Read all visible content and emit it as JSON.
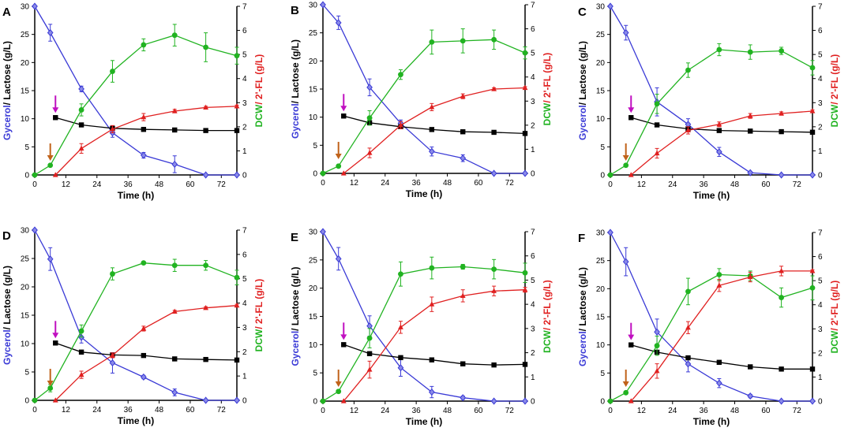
{
  "chart_data": [
    {
      "panel": "A",
      "type": "line",
      "title": "",
      "xlabel": "Time (h)",
      "ylabel_left_part1": "Gycerol",
      "ylabel_left_part2": "/ Lactose (g/L)",
      "ylabel_right_part1": "DCW",
      "ylabel_right_part2": "/ 2'-FL (g/L)",
      "xlim": [
        0,
        78
      ],
      "xticks": [
        "0",
        "12",
        "24",
        "36",
        "48",
        "60",
        "72"
      ],
      "ylim_left": [
        0,
        30
      ],
      "yticks_left": [
        "0",
        "5",
        "10",
        "15",
        "20",
        "25",
        "30"
      ],
      "ylim_right": [
        0,
        7
      ],
      "yticks_right": [
        "0",
        "1",
        "2",
        "3",
        "4",
        "5",
        "6",
        "7"
      ],
      "arrow_feed_time": 6,
      "arrow_induction_time": 8,
      "series": [
        {
          "name": "Glycerol",
          "axis": "left",
          "color": "#3a3ad6",
          "marker": "diamond",
          "x": [
            0,
            6,
            18,
            30,
            42,
            54,
            66,
            78
          ],
          "y": [
            30,
            25.3,
            15.3,
            7.5,
            3.5,
            1.9,
            0,
            0
          ],
          "err": [
            0,
            1.5,
            0.5,
            0.8,
            0.5,
            1.5,
            0,
            0
          ]
        },
        {
          "name": "Lactose",
          "axis": "left",
          "color": "#000000",
          "marker": "square",
          "x": [
            8,
            18,
            30,
            42,
            54,
            66,
            78
          ],
          "y": [
            10.2,
            8.9,
            8.3,
            8.1,
            8.0,
            7.9,
            7.9
          ],
          "err": [
            0,
            0,
            0,
            0,
            0,
            0,
            0
          ]
        },
        {
          "name": "DCW",
          "axis": "right",
          "color": "#21b321",
          "marker": "circle",
          "x": [
            0,
            6,
            18,
            30,
            42,
            54,
            66,
            78
          ],
          "y": [
            0,
            0.4,
            2.7,
            4.3,
            5.4,
            5.8,
            5.3,
            4.95
          ],
          "err": [
            0,
            0.05,
            0.25,
            0.45,
            0.25,
            0.45,
            0.6,
            0.35
          ]
        },
        {
          "name": "2'-FL",
          "axis": "right",
          "color": "#e02020",
          "marker": "triangle",
          "x": [
            8,
            18,
            30,
            42,
            54,
            66,
            78
          ],
          "y": [
            0,
            1.1,
            1.9,
            2.4,
            2.65,
            2.8,
            2.85
          ],
          "err": [
            0,
            0.2,
            0.15,
            0.15,
            0.07,
            0.05,
            0.05
          ]
        }
      ]
    },
    {
      "panel": "B",
      "type": "line",
      "title": "",
      "xlabel": "Time (h)",
      "ylabel_left_part1": "Gycerol",
      "ylabel_left_part2": "/ Lactose (g/L)",
      "ylabel_right_part1": "DCW",
      "ylabel_right_part2": "/ 2'-FL (g/L)",
      "xlim": [
        0,
        78
      ],
      "xticks": [
        "0",
        "12",
        "24",
        "36",
        "48",
        "60",
        "72"
      ],
      "ylim_left": [
        0,
        30
      ],
      "yticks_left": [
        "0",
        "5",
        "10",
        "15",
        "20",
        "25",
        "30"
      ],
      "ylim_right": [
        0,
        7
      ],
      "yticks_right": [
        "0",
        "1",
        "2",
        "3",
        "4",
        "5",
        "6",
        "7"
      ],
      "arrow_feed_time": 6,
      "arrow_induction_time": 8,
      "series": [
        {
          "name": "Glycerol",
          "axis": "left",
          "color": "#3a3ad6",
          "marker": "diamond",
          "x": [
            0,
            6,
            18,
            30,
            42,
            54,
            66,
            78
          ],
          "y": [
            30,
            26.8,
            15.3,
            8.9,
            3.9,
            2.7,
            0,
            0
          ],
          "err": [
            0,
            1.2,
            1.5,
            0.6,
            0.8,
            0.6,
            0,
            0
          ]
        },
        {
          "name": "Lactose",
          "axis": "left",
          "color": "#000000",
          "marker": "square",
          "x": [
            8,
            18,
            30,
            42,
            54,
            66,
            78
          ],
          "y": [
            10.2,
            9.0,
            8.3,
            7.8,
            7.4,
            7.3,
            7.1
          ],
          "err": [
            0,
            0,
            0,
            0,
            0,
            0,
            0
          ]
        },
        {
          "name": "DCW",
          "axis": "right",
          "color": "#21b321",
          "marker": "circle",
          "x": [
            0,
            6,
            18,
            30,
            42,
            54,
            66,
            78
          ],
          "y": [
            0,
            0.3,
            2.3,
            4.1,
            5.45,
            5.5,
            5.55,
            5.0
          ],
          "err": [
            0,
            0.05,
            0.3,
            0.2,
            0.5,
            0.5,
            0.4,
            0.25
          ]
        },
        {
          "name": "2'-FL",
          "axis": "right",
          "color": "#e02020",
          "marker": "triangle",
          "x": [
            8,
            18,
            30,
            42,
            54,
            66,
            78
          ],
          "y": [
            0,
            0.85,
            2.0,
            2.75,
            3.2,
            3.5,
            3.55
          ],
          "err": [
            0,
            0.2,
            0.15,
            0.15,
            0.1,
            0.05,
            0.05
          ]
        }
      ]
    },
    {
      "panel": "C",
      "type": "line",
      "title": "",
      "xlabel": "Time (h)",
      "ylabel_left_part1": "Gycerol",
      "ylabel_left_part2": "/ Lactose (g/L)",
      "ylabel_right_part1": "DCW",
      "ylabel_right_part2": "/ 2'-FL (g/L)",
      "xlim": [
        0,
        78
      ],
      "xticks": [
        "0",
        "12",
        "24",
        "36",
        "48",
        "60",
        "72"
      ],
      "ylim_left": [
        0,
        30
      ],
      "yticks_left": [
        "0",
        "5",
        "10",
        "15",
        "20",
        "25",
        "30"
      ],
      "ylim_right": [
        0,
        7
      ],
      "yticks_right": [
        "0",
        "1",
        "2",
        "3",
        "4",
        "5",
        "6",
        "7"
      ],
      "arrow_feed_time": 6,
      "arrow_induction_time": 8,
      "series": [
        {
          "name": "Glycerol",
          "axis": "left",
          "color": "#3a3ad6",
          "marker": "diamond",
          "x": [
            0,
            6,
            18,
            30,
            42,
            54,
            66,
            78
          ],
          "y": [
            30,
            25.3,
            13.0,
            9.0,
            4.1,
            0.4,
            0,
            0
          ],
          "err": [
            0,
            1.3,
            2.5,
            1.0,
            0.8,
            0.2,
            0,
            0
          ]
        },
        {
          "name": "Lactose",
          "axis": "left",
          "color": "#000000",
          "marker": "square",
          "x": [
            8,
            18,
            30,
            42,
            54,
            66,
            78
          ],
          "y": [
            10.2,
            8.9,
            8.2,
            7.9,
            7.8,
            7.7,
            7.6
          ],
          "err": [
            0,
            0,
            0,
            0,
            0,
            0,
            0
          ]
        },
        {
          "name": "DCW",
          "axis": "right",
          "color": "#21b321",
          "marker": "circle",
          "x": [
            0,
            6,
            18,
            30,
            42,
            54,
            66,
            78
          ],
          "y": [
            0,
            0.4,
            2.95,
            4.35,
            5.2,
            5.1,
            5.15,
            4.45
          ],
          "err": [
            0,
            0.05,
            0.4,
            0.3,
            0.25,
            0.3,
            0.15,
            0.3
          ]
        },
        {
          "name": "2'-FL",
          "axis": "right",
          "color": "#e02020",
          "marker": "triangle",
          "x": [
            8,
            18,
            30,
            42,
            54,
            66,
            78
          ],
          "y": [
            0,
            0.9,
            1.85,
            2.1,
            2.45,
            2.55,
            2.65
          ],
          "err": [
            0,
            0.2,
            0.15,
            0.1,
            0.1,
            0.07,
            0.05
          ]
        }
      ]
    },
    {
      "panel": "D",
      "type": "line",
      "title": "",
      "xlabel": "Time (h)",
      "ylabel_left_part1": "Gycerol",
      "ylabel_left_part2": "/ Lactose (g/L)",
      "ylabel_right_part1": "DCW",
      "ylabel_right_part2": "/ 2'-FL (g/L)",
      "xlim": [
        0,
        78
      ],
      "xticks": [
        "0",
        "12",
        "24",
        "36",
        "48",
        "60",
        "72"
      ],
      "ylim_left": [
        0,
        30
      ],
      "yticks_left": [
        "0",
        "5",
        "10",
        "15",
        "20",
        "25",
        "30"
      ],
      "ylim_right": [
        0,
        7
      ],
      "yticks_right": [
        "0",
        "1",
        "2",
        "3",
        "4",
        "5",
        "6",
        "7"
      ],
      "arrow_feed_time": 6,
      "arrow_induction_time": 8,
      "series": [
        {
          "name": "Glycerol",
          "axis": "left",
          "color": "#3a3ad6",
          "marker": "diamond",
          "x": [
            0,
            6,
            18,
            30,
            42,
            54,
            66,
            78
          ],
          "y": [
            30,
            24.9,
            11.1,
            6.6,
            4.1,
            1.4,
            0,
            0
          ],
          "err": [
            0,
            2.0,
            1.0,
            1.8,
            0.3,
            0.6,
            0,
            0
          ]
        },
        {
          "name": "Lactose",
          "axis": "left",
          "color": "#000000",
          "marker": "square",
          "x": [
            8,
            18,
            30,
            42,
            54,
            66,
            78
          ],
          "y": [
            10.1,
            8.5,
            8.0,
            7.9,
            7.3,
            7.2,
            7.1
          ],
          "err": [
            0,
            0,
            0,
            0,
            0,
            0,
            0
          ]
        },
        {
          "name": "DCW",
          "axis": "right",
          "color": "#21b321",
          "marker": "circle",
          "x": [
            0,
            6,
            18,
            30,
            42,
            54,
            66,
            78
          ],
          "y": [
            0,
            0.5,
            2.85,
            5.2,
            5.65,
            5.55,
            5.55,
            5.05
          ],
          "err": [
            0,
            0.15,
            0.25,
            0.25,
            0.05,
            0.25,
            0.2,
            0.3
          ]
        },
        {
          "name": "2'-FL",
          "axis": "right",
          "color": "#e02020",
          "marker": "triangle",
          "x": [
            8,
            18,
            30,
            42,
            54,
            66,
            78
          ],
          "y": [
            0,
            1.05,
            1.85,
            2.95,
            3.65,
            3.8,
            3.9
          ],
          "err": [
            0,
            0.15,
            0.1,
            0.1,
            0.05,
            0.05,
            0.05
          ]
        }
      ]
    },
    {
      "panel": "E",
      "type": "line",
      "title": "",
      "xlabel": "Time (h)",
      "ylabel_left_part1": "Gycerol",
      "ylabel_left_part2": "/ Lactose (g/L)",
      "ylabel_right_part1": "DCW",
      "ylabel_right_part2": "/ 2'-FL (g/L)",
      "xlim": [
        0,
        78
      ],
      "xticks": [
        "0",
        "12",
        "24",
        "36",
        "48",
        "60",
        "72"
      ],
      "ylim_left": [
        0,
        30
      ],
      "yticks_left": [
        "0",
        "5",
        "10",
        "15",
        "20",
        "25",
        "30"
      ],
      "ylim_right": [
        0,
        7
      ],
      "yticks_right": [
        "0",
        "1",
        "2",
        "3",
        "4",
        "5",
        "6",
        "7"
      ],
      "arrow_feed_time": 6,
      "arrow_induction_time": 8,
      "series": [
        {
          "name": "Glycerol",
          "axis": "left",
          "color": "#3a3ad6",
          "marker": "diamond",
          "x": [
            0,
            6,
            18,
            30,
            42,
            54,
            66,
            78
          ],
          "y": [
            30,
            25.2,
            13.3,
            5.9,
            1.6,
            0.6,
            0,
            0
          ],
          "err": [
            0,
            2.0,
            1.8,
            1.5,
            1.0,
            0.3,
            0,
            0
          ]
        },
        {
          "name": "Lactose",
          "axis": "left",
          "color": "#000000",
          "marker": "square",
          "x": [
            8,
            18,
            30,
            42,
            54,
            66,
            78
          ],
          "y": [
            10.0,
            8.4,
            7.7,
            7.3,
            6.6,
            6.4,
            6.5
          ],
          "err": [
            0,
            0,
            0,
            0,
            0,
            0,
            0
          ]
        },
        {
          "name": "DCW",
          "axis": "right",
          "color": "#21b321",
          "marker": "circle",
          "x": [
            0,
            6,
            18,
            30,
            42,
            54,
            66,
            78
          ],
          "y": [
            0,
            0.4,
            2.6,
            5.25,
            5.5,
            5.55,
            5.45,
            5.3
          ],
          "err": [
            0,
            0.05,
            0.4,
            0.5,
            0.45,
            0.1,
            0.4,
            0.4
          ]
        },
        {
          "name": "2'-FL",
          "axis": "right",
          "color": "#e02020",
          "marker": "triangle",
          "x": [
            8,
            18,
            30,
            42,
            54,
            66,
            78
          ],
          "y": [
            0,
            1.3,
            3.05,
            4.0,
            4.35,
            4.55,
            4.6
          ],
          "err": [
            0,
            0.35,
            0.25,
            0.3,
            0.25,
            0.2,
            0.1
          ]
        }
      ]
    },
    {
      "panel": "F",
      "type": "line",
      "title": "",
      "xlabel": "Time (h)",
      "ylabel_left_part1": "Gycerol",
      "ylabel_left_part2": "/ Lactose (g/L)",
      "ylabel_right_part1": "DCW",
      "ylabel_right_part2": "/ 2'-FL (g/L)",
      "xlim": [
        0,
        78
      ],
      "xticks": [
        "0",
        "12",
        "24",
        "36",
        "48",
        "60",
        "72"
      ],
      "ylim_left": [
        0,
        30
      ],
      "yticks_left": [
        "0",
        "5",
        "10",
        "15",
        "20",
        "25",
        "30"
      ],
      "ylim_right": [
        0,
        7
      ],
      "yticks_right": [
        "0",
        "1",
        "2",
        "3",
        "4",
        "5",
        "6",
        "7"
      ],
      "arrow_feed_time": 6,
      "arrow_induction_time": 8,
      "series": [
        {
          "name": "Glycerol",
          "axis": "left",
          "color": "#3a3ad6",
          "marker": "diamond",
          "x": [
            0,
            6,
            18,
            30,
            42,
            54,
            66,
            78
          ],
          "y": [
            30,
            24.8,
            12.3,
            6.6,
            3.2,
            0.9,
            0,
            0
          ],
          "err": [
            0,
            2.5,
            2.3,
            1.4,
            0.8,
            0.3,
            0,
            0
          ]
        },
        {
          "name": "Lactose",
          "axis": "left",
          "color": "#000000",
          "marker": "square",
          "x": [
            8,
            18,
            30,
            42,
            54,
            66,
            78
          ],
          "y": [
            10.0,
            8.7,
            7.7,
            6.9,
            6.1,
            5.7,
            5.7
          ],
          "err": [
            0,
            0,
            0,
            0,
            0,
            0,
            0
          ]
        },
        {
          "name": "DCW",
          "axis": "right",
          "color": "#21b321",
          "marker": "circle",
          "x": [
            0,
            6,
            18,
            30,
            42,
            54,
            66,
            78
          ],
          "y": [
            0,
            0.35,
            2.3,
            4.55,
            5.25,
            5.2,
            4.3,
            4.7
          ],
          "err": [
            0,
            0.05,
            0.4,
            0.55,
            0.25,
            0.2,
            0.4,
            0.5
          ]
        },
        {
          "name": "2'-FL",
          "axis": "right",
          "color": "#e02020",
          "marker": "triangle",
          "x": [
            8,
            18,
            30,
            42,
            54,
            66,
            78
          ],
          "y": [
            0,
            1.25,
            3.05,
            4.8,
            5.15,
            5.4,
            5.4
          ],
          "err": [
            0,
            0.3,
            0.25,
            0.25,
            0.2,
            0.2,
            0.05
          ]
        }
      ]
    }
  ]
}
